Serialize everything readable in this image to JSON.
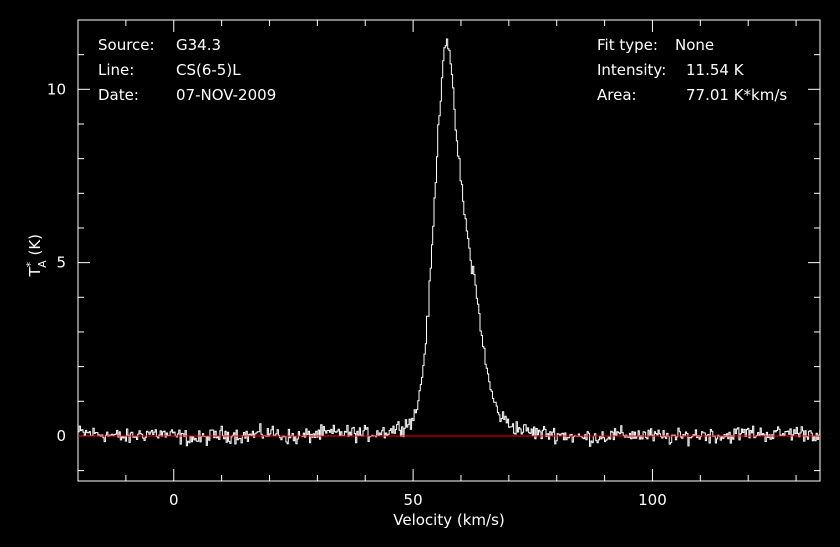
{
  "info_left": {
    "source_label": "Source:",
    "source_value": "G34.3",
    "line_label": "Line:",
    "line_value": "CS(6-5)L",
    "date_label": "Date:",
    "date_value": "07-NOV-2009"
  },
  "info_right": {
    "fit_label": "Fit type:",
    "fit_value": "None",
    "intensity_label": "Intensity:",
    "intensity_value": "11.54 K",
    "area_label": "Area:",
    "area_value": "77.01 K*km/s"
  },
  "colors": {
    "background": "#000000",
    "axes": "#ffffff",
    "spectrum": "#ffffff",
    "baseline": "#ff0000"
  },
  "chart_data": {
    "type": "line",
    "xlabel": "Velocity (km/s)",
    "ylabel": "T",
    "ylabel_sup": "*",
    "ylabel_sub": "A",
    "ylabel_unit": "(K)",
    "xlim": [
      -20,
      135
    ],
    "ylim": [
      -1.3,
      12.0
    ],
    "xticks": [
      0,
      50,
      100
    ],
    "yticks": [
      0,
      5,
      10
    ],
    "baseline": 0,
    "series": [
      {
        "x": [
          -20,
          -15,
          -10,
          -5,
          0,
          5,
          10,
          15,
          20,
          25,
          30,
          35,
          40,
          45,
          48,
          50,
          51,
          52,
          53,
          54,
          55,
          56,
          56.5,
          57,
          57.5,
          58,
          58.5,
          59,
          60,
          61,
          62,
          62.5,
          63,
          64,
          65,
          66,
          67,
          68,
          70,
          72,
          75,
          80,
          85,
          90,
          95,
          100,
          105,
          110,
          115,
          120,
          125,
          130,
          135
        ],
        "y": [
          0.1,
          0.05,
          -0.05,
          0.1,
          0.0,
          -0.1,
          0.05,
          0.0,
          0.1,
          -0.05,
          0.05,
          0.1,
          0.05,
          0.15,
          0.3,
          0.5,
          1.0,
          2.0,
          3.5,
          5.8,
          8.5,
          10.6,
          11.3,
          11.54,
          11.0,
          10.2,
          9.5,
          8.5,
          7.2,
          6.0,
          5.0,
          4.8,
          4.2,
          3.2,
          2.1,
          1.4,
          0.9,
          0.6,
          0.35,
          0.2,
          0.1,
          0.05,
          -0.05,
          0.0,
          0.05,
          0.0,
          -0.05,
          0.05,
          0.0,
          0.1,
          0.05,
          0.1,
          0.05
        ]
      }
    ]
  }
}
